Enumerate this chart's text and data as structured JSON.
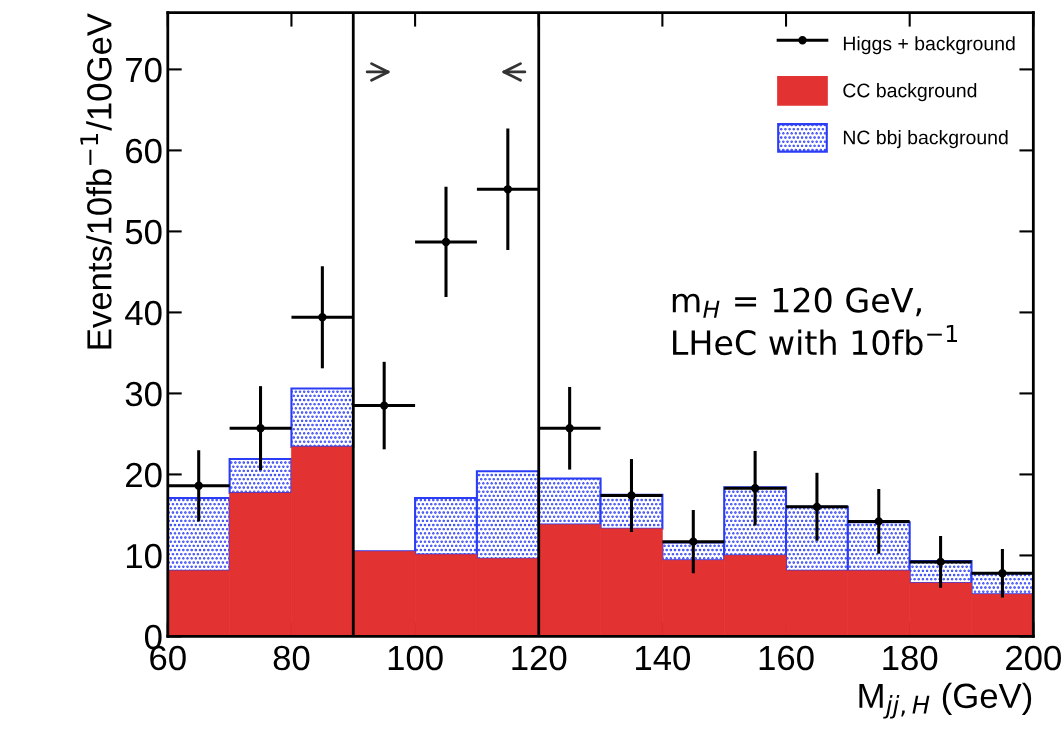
{
  "chart_data": {
    "type": "bar",
    "stacked": true,
    "xlabel": "M$_{jj,H}$ (GeV)",
    "ylabel": "Events/10fb$^{−1}$/10GeV",
    "x": [
      65,
      75,
      85,
      95,
      105,
      115,
      125,
      135,
      145,
      155,
      165,
      175,
      185,
      195
    ],
    "series": [
      {
        "name": "CC background",
        "color": "#e33232",
        "values": [
          8.1,
          17.7,
          23.4,
          10.5,
          10.1,
          9.6,
          13.8,
          13.3,
          9.4,
          10.0,
          8.1,
          8.1,
          6.6,
          5.2
        ]
      },
      {
        "name": "NC bbj background",
        "color": "#2a3cf5",
        "values": [
          9.0,
          4.2,
          7.2,
          0,
          7.0,
          10.8,
          5.7,
          4.2,
          2.2,
          8.4,
          7.9,
          6.0,
          2.7,
          2.6
        ]
      },
      {
        "name": "Higgs + background",
        "type": "scatter",
        "color": "#000000",
        "marker": "circle",
        "x": [
          65,
          75,
          85,
          95,
          105,
          115,
          125,
          135,
          145,
          155,
          165,
          175,
          185,
          195
        ],
        "values": [
          18.6,
          25.7,
          39.4,
          28.5,
          48.7,
          55.2,
          25.7,
          17.4,
          11.7,
          18.3,
          16.0,
          14.2,
          9.2,
          7.8
        ],
        "errors": [
          4.4,
          5.2,
          6.3,
          5.4,
          6.8,
          7.5,
          5.1,
          4.5,
          3.9,
          4.6,
          4.2,
          4.0,
          3.2,
          3.0
        ],
        "xerrors": [
          5,
          5,
          5,
          5,
          5,
          5,
          5,
          5,
          5,
          5,
          5,
          5,
          5,
          5
        ]
      }
    ],
    "xlim": [
      60,
      200
    ],
    "xticks": [
      60,
      80,
      100,
      120,
      140,
      160,
      180,
      200
    ],
    "ylim": [
      0,
      77
    ],
    "yticks": [
      0,
      10,
      20,
      30,
      40,
      50,
      60,
      70
    ],
    "ref_lines": [
      {
        "axis": "x",
        "value": 90,
        "color": "#000000"
      },
      {
        "axis": "x",
        "value": 120,
        "color": "#000000"
      }
    ],
    "annotations": [
      "m$_{H}$ = 120 GeV,\nLHeC with 10fb$^{−1}$"
    ],
    "legend": "top right",
    "grid": false
  }
}
